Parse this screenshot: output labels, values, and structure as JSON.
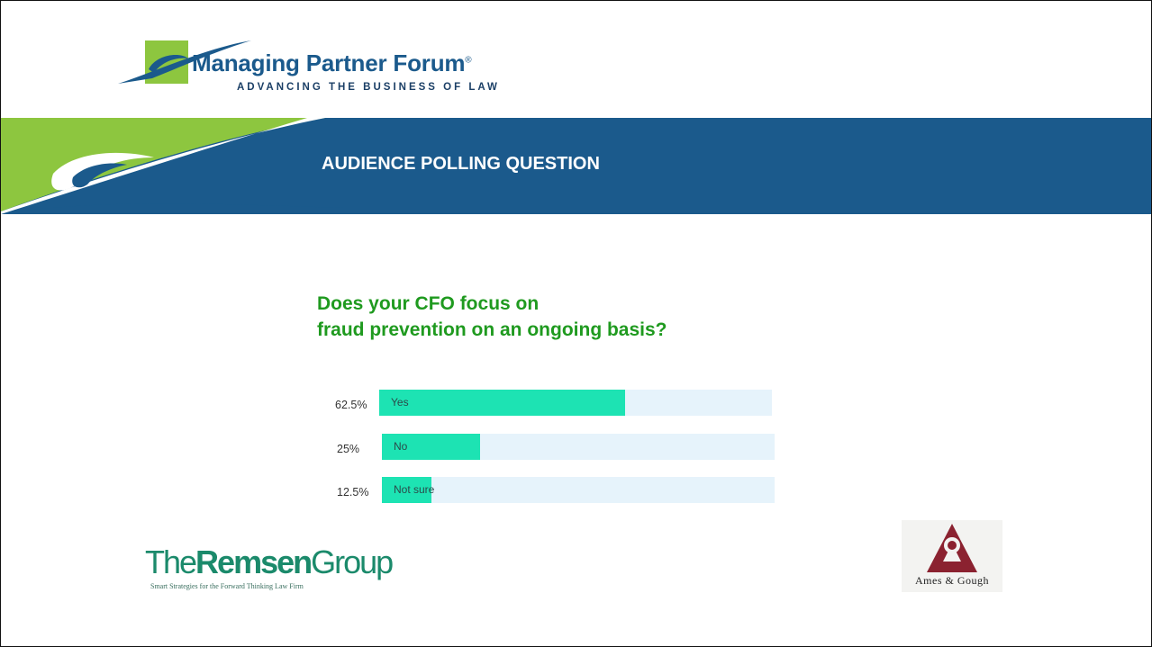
{
  "header": {
    "logo_title": "Managing Partner Forum",
    "logo_reg": "®",
    "logo_tagline": "ADVANCING THE BUSINESS OF LAW"
  },
  "banner": {
    "title": "AUDIENCE POLLING QUESTION"
  },
  "question": {
    "line1": "Does your CFO focus on",
    "line2": "fraud prevention on an ongoing basis?"
  },
  "poll": {
    "options": [
      {
        "percent_label": "62.5%",
        "label": "Yes",
        "value": 62.5
      },
      {
        "percent_label": "25%",
        "label": "No",
        "value": 25
      },
      {
        "percent_label": "12.5%",
        "label": "Not sure",
        "value": 12.5
      }
    ]
  },
  "footer": {
    "remsen_prefix": "The",
    "remsen_bold": "Remsen",
    "remsen_suffix": "Group",
    "remsen_tagline": "Smart Strategies for the Forward Thinking Law Firm",
    "ames_gough": "Ames & Gough"
  },
  "colors": {
    "banner_blue": "#1b5a8c",
    "accent_green": "#8dc63f",
    "question_green": "#1f9a1f",
    "bar_fill": "#1de3b3",
    "bar_track": "#e6f3fb",
    "ames_red": "#8b2230"
  }
}
